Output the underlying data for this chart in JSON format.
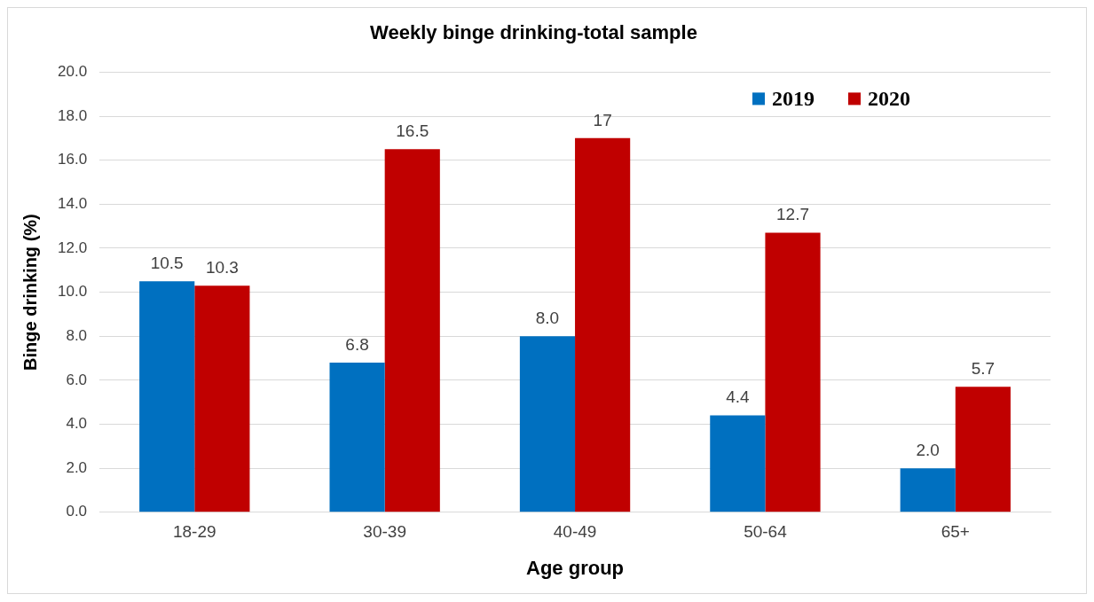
{
  "chart_data": {
    "type": "bar",
    "title": "Weekly binge drinking-total sample",
    "xlabel": "Age group",
    "ylabel": "Binge drinking (%)",
    "categories": [
      "18-29",
      "30-39",
      "40-49",
      "50-64",
      "65+"
    ],
    "series": [
      {
        "name": "2019",
        "color": "#0070c0",
        "values": [
          10.5,
          6.8,
          8.0,
          4.4,
          2.0
        ],
        "value_labels": [
          "10.5",
          "6.8",
          "8.0",
          "4.4",
          "2.0"
        ]
      },
      {
        "name": "2020",
        "color": "#c00000",
        "values": [
          10.3,
          16.5,
          17,
          12.7,
          5.7
        ],
        "value_labels": [
          "10.3",
          "16.5",
          "17",
          "12.7",
          "5.7"
        ]
      }
    ],
    "ylim": [
      0,
      20
    ],
    "yticks": [
      {
        "value": 0,
        "label": "0.0"
      },
      {
        "value": 2,
        "label": "2.0"
      },
      {
        "value": 4,
        "label": "4.0"
      },
      {
        "value": 6,
        "label": "6.0"
      },
      {
        "value": 8,
        "label": "8.0"
      },
      {
        "value": 10,
        "label": "10.0"
      },
      {
        "value": 12,
        "label": "12.0"
      },
      {
        "value": 14,
        "label": "14.0"
      },
      {
        "value": 16,
        "label": "16.0"
      },
      {
        "value": 18,
        "label": "18.0"
      },
      {
        "value": 20,
        "label": "20.0"
      }
    ],
    "grid": "y",
    "legend": "top right"
  }
}
